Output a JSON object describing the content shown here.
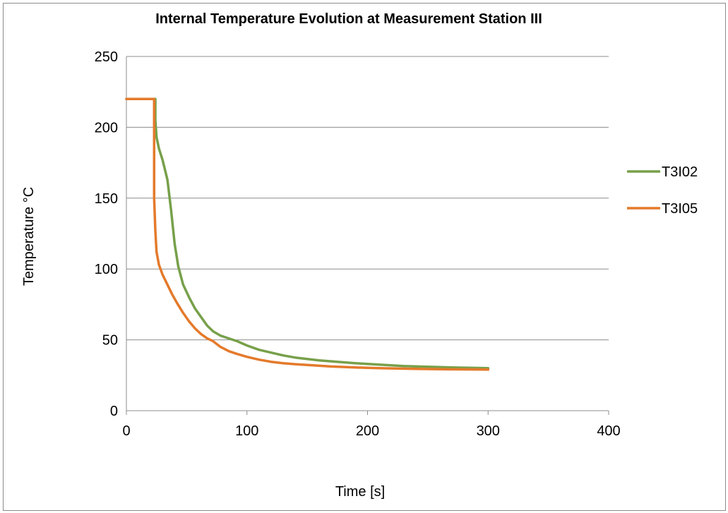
{
  "chart_data": {
    "type": "line",
    "title": "Internal Temperature Evolution at Measurement Station III",
    "xlabel": "Time [s]",
    "ylabel": "Temperature °C",
    "xlim": [
      0,
      400
    ],
    "ylim": [
      0,
      250
    ],
    "xticks": [
      0,
      100,
      200,
      300,
      400
    ],
    "yticks": [
      0,
      50,
      100,
      150,
      200,
      250
    ],
    "grid": "horizontal",
    "legend_position": "right",
    "series": [
      {
        "name": "T3I02",
        "color": "#77a04a",
        "points": [
          [
            0,
            220
          ],
          [
            24,
            220
          ],
          [
            24,
            205
          ],
          [
            25,
            193
          ],
          [
            27,
            185
          ],
          [
            30,
            177
          ],
          [
            34,
            163
          ],
          [
            37,
            142
          ],
          [
            40,
            118
          ],
          [
            43,
            102
          ],
          [
            47,
            89
          ],
          [
            52,
            80
          ],
          [
            57,
            72
          ],
          [
            62,
            66
          ],
          [
            67,
            60
          ],
          [
            72,
            56
          ],
          [
            78,
            53
          ],
          [
            85,
            51
          ],
          [
            92,
            49
          ],
          [
            100,
            46
          ],
          [
            110,
            43
          ],
          [
            120,
            41
          ],
          [
            130,
            39
          ],
          [
            140,
            37.5
          ],
          [
            150,
            36.5
          ],
          [
            160,
            35.5
          ],
          [
            175,
            34.5
          ],
          [
            190,
            33.5
          ],
          [
            210,
            32.5
          ],
          [
            230,
            31.5
          ],
          [
            250,
            31
          ],
          [
            270,
            30.5
          ],
          [
            300,
            30
          ]
        ]
      },
      {
        "name": "T3I05",
        "color": "#e47a2b",
        "points": [
          [
            0,
            220
          ],
          [
            23,
            220
          ],
          [
            23,
            150
          ],
          [
            24,
            127
          ],
          [
            25,
            112
          ],
          [
            27,
            103
          ],
          [
            30,
            96
          ],
          [
            34,
            89
          ],
          [
            38,
            82
          ],
          [
            42,
            76
          ],
          [
            47,
            69
          ],
          [
            52,
            63
          ],
          [
            57,
            58
          ],
          [
            62,
            54
          ],
          [
            67,
            51
          ],
          [
            72,
            49
          ],
          [
            78,
            45
          ],
          [
            85,
            42
          ],
          [
            92,
            40
          ],
          [
            100,
            38
          ],
          [
            110,
            36
          ],
          [
            120,
            34.5
          ],
          [
            130,
            33.5
          ],
          [
            140,
            32.8
          ],
          [
            155,
            32
          ],
          [
            170,
            31.2
          ],
          [
            190,
            30.5
          ],
          [
            210,
            30
          ],
          [
            240,
            29.5
          ],
          [
            270,
            29.2
          ],
          [
            300,
            29
          ]
        ]
      }
    ]
  }
}
